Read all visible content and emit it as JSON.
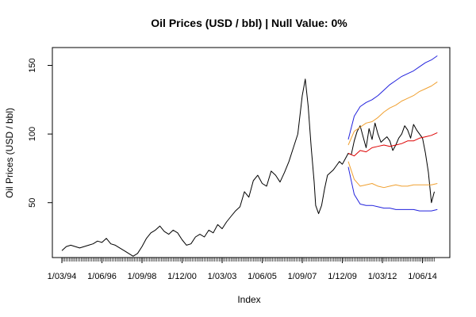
{
  "chart_data": {
    "type": "line",
    "title": "Oil Prices (USD / bbl) | Null Value: 0%",
    "xlabel": "Index",
    "ylabel": "Oil Prices (USD / bbl)",
    "x_tick_labels": [
      "1/03/94",
      "1/06/96",
      "1/09/98",
      "1/12/00",
      "1/03/03",
      "1/06/05",
      "1/09/07",
      "1/12/09",
      "1/03/12",
      "1/06/14"
    ],
    "x_tick_index": [
      0,
      27,
      54,
      81,
      108,
      135,
      162,
      189,
      216,
      243
    ],
    "x_range": [
      0,
      255
    ],
    "y_ticks": [
      50,
      100,
      150
    ],
    "ylim": [
      10,
      163
    ],
    "grid": false,
    "legend": "none",
    "colors": {
      "actual": "#000000",
      "forecast": "#dd0000",
      "interval_80": "#f0a030",
      "interval_95": "#2222dd"
    },
    "series": [
      {
        "key": "actual",
        "index": [
          0,
          3,
          6,
          9,
          12,
          15,
          18,
          21,
          24,
          27,
          30,
          33,
          36,
          39,
          42,
          45,
          48,
          51,
          54,
          57,
          60,
          63,
          66,
          69,
          72,
          75,
          78,
          81,
          84,
          87,
          90,
          93,
          96,
          99,
          102,
          105,
          108,
          111,
          114,
          117,
          120,
          123,
          126,
          129,
          132,
          135,
          138,
          141,
          144,
          147,
          150,
          153,
          156,
          159,
          162,
          164,
          166,
          168,
          170,
          171,
          173,
          175,
          177,
          179,
          181,
          183,
          185,
          187,
          189,
          191,
          193,
          195,
          197,
          199,
          201,
          203,
          205,
          207,
          209,
          211,
          213,
          215,
          217,
          219,
          221,
          223,
          225,
          227,
          229,
          231,
          233,
          235,
          237,
          239,
          241,
          243,
          245,
          247,
          249,
          251
        ],
        "values": [
          15,
          18,
          19,
          18,
          17,
          18,
          19,
          20,
          22,
          21,
          24,
          20,
          19,
          17,
          15,
          13,
          11,
          13,
          18,
          24,
          28,
          30,
          33,
          29,
          27,
          30,
          28,
          23,
          19,
          20,
          25,
          27,
          25,
          30,
          28,
          34,
          31,
          36,
          40,
          44,
          47,
          58,
          54,
          66,
          70,
          64,
          62,
          73,
          70,
          65,
          72,
          80,
          90,
          100,
          128,
          140,
          120,
          90,
          65,
          48,
          42,
          48,
          60,
          70,
          72,
          74,
          77,
          80,
          78,
          82,
          86,
          85,
          95,
          102,
          106,
          98,
          90,
          104,
          96,
          108,
          100,
          94,
          96,
          98,
          95,
          88,
          92,
          97,
          100,
          106,
          103,
          97,
          107,
          103,
          100,
          97,
          86,
          72,
          50,
          58
        ]
      },
      {
        "key": "forecast",
        "index": [
          193,
          197,
          201,
          205,
          209,
          213,
          217,
          221,
          225,
          229,
          233,
          237,
          241,
          245,
          249,
          253
        ],
        "values": [
          86,
          84,
          88,
          87,
          90,
          91,
          92,
          91,
          92,
          93,
          95,
          95,
          97,
          98,
          99,
          101
        ]
      },
      {
        "key": "interval_80_upper",
        "index": [
          193,
          197,
          201,
          205,
          209,
          213,
          217,
          221,
          225,
          229,
          233,
          237,
          241,
          245,
          249,
          253
        ],
        "values": [
          92,
          102,
          105,
          108,
          109,
          112,
          116,
          119,
          121,
          124,
          126,
          128,
          131,
          133,
          135,
          138
        ]
      },
      {
        "key": "interval_80_lower",
        "index": [
          193,
          197,
          201,
          205,
          209,
          213,
          217,
          221,
          225,
          229,
          233,
          237,
          241,
          245,
          249,
          253
        ],
        "values": [
          80,
          67,
          62,
          63,
          64,
          62,
          61,
          62,
          63,
          62,
          62,
          63,
          63,
          63,
          63,
          64
        ]
      },
      {
        "key": "interval_95_upper",
        "index": [
          193,
          197,
          201,
          205,
          209,
          213,
          217,
          221,
          225,
          229,
          233,
          237,
          241,
          245,
          249,
          253
        ],
        "values": [
          96,
          113,
          120,
          123,
          125,
          128,
          132,
          136,
          139,
          142,
          144,
          146,
          149,
          152,
          154,
          157
        ]
      },
      {
        "key": "interval_95_lower",
        "index": [
          193,
          197,
          201,
          205,
          209,
          213,
          217,
          221,
          225,
          229,
          233,
          237,
          241,
          245,
          249,
          253
        ],
        "values": [
          76,
          56,
          49,
          48,
          48,
          47,
          46,
          46,
          45,
          45,
          45,
          45,
          44,
          44,
          44,
          45
        ]
      }
    ]
  }
}
